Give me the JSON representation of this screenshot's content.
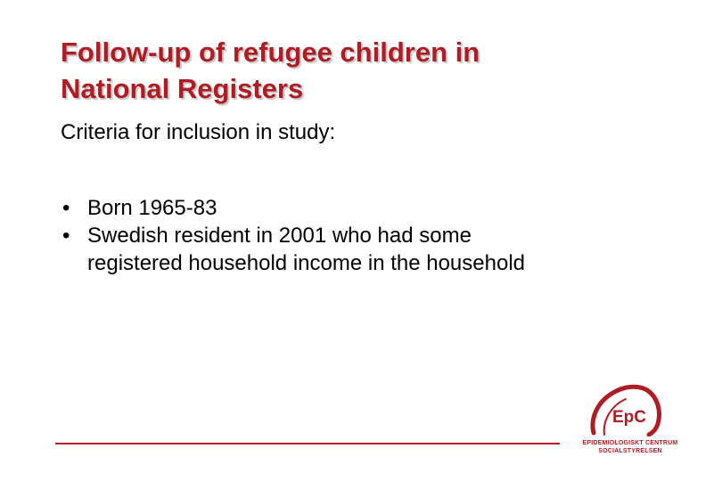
{
  "slide": {
    "title_lines": [
      "Follow-up of refugee children in",
      "National Registers"
    ],
    "subtitle": "Criteria for inclusion in study:",
    "bullets": [
      {
        "marker": "•",
        "lines": [
          "Born 1965-83"
        ]
      },
      {
        "marker": "•",
        "lines": [
          "Swedish resident in 2001 who had some",
          "registered household income in the household"
        ]
      }
    ]
  },
  "logo": {
    "mark_text": "EpC",
    "name_line1": "EPIDEMIOLOGISKT CENTRUM",
    "name_line2": "SOCIALSTYRELSEN"
  },
  "colors": {
    "accent": "#b01c24",
    "text": "#000000",
    "background": "#ffffff"
  }
}
